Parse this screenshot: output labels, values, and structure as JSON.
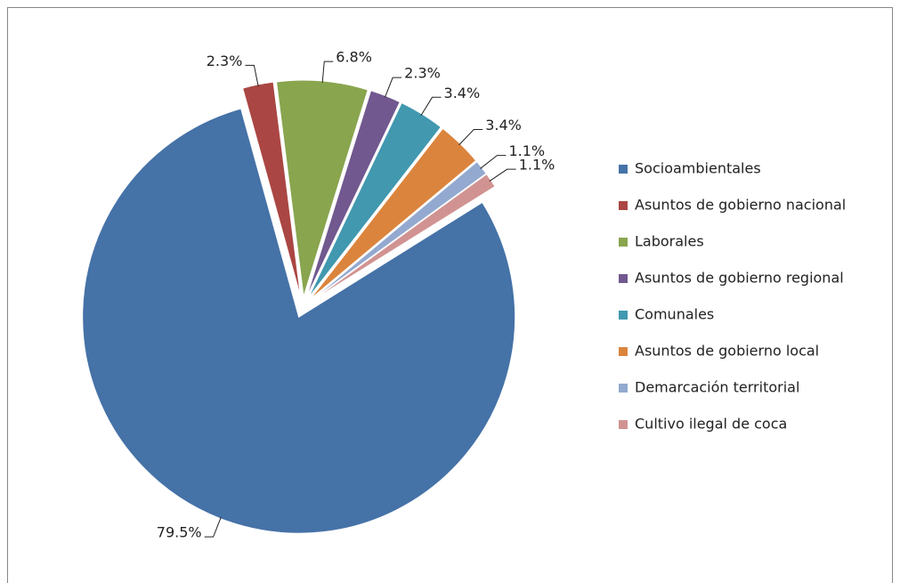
{
  "chart_data": {
    "type": "pie",
    "categories": [
      "Socioambientales",
      "Asuntos de gobierno nacional",
      "Laborales",
      "Asuntos de gobierno regional",
      "Comunales",
      "Asuntos de gobierno local",
      "Demarcación territorial",
      "Cultivo ilegal de coca"
    ],
    "values": [
      79.5,
      2.3,
      6.8,
      2.3,
      3.4,
      3.4,
      1.1,
      1.1
    ],
    "value_labels": [
      "79.5%",
      "2.3%",
      "6.8%",
      "2.3%",
      "3.4%",
      "3.4%",
      "1.1%",
      "1.1%"
    ],
    "colors": [
      "#4572a7",
      "#aa4643",
      "#89a54e",
      "#71588f",
      "#4198af",
      "#db843d",
      "#93a9cf",
      "#d19392"
    ],
    "legend": "right"
  }
}
